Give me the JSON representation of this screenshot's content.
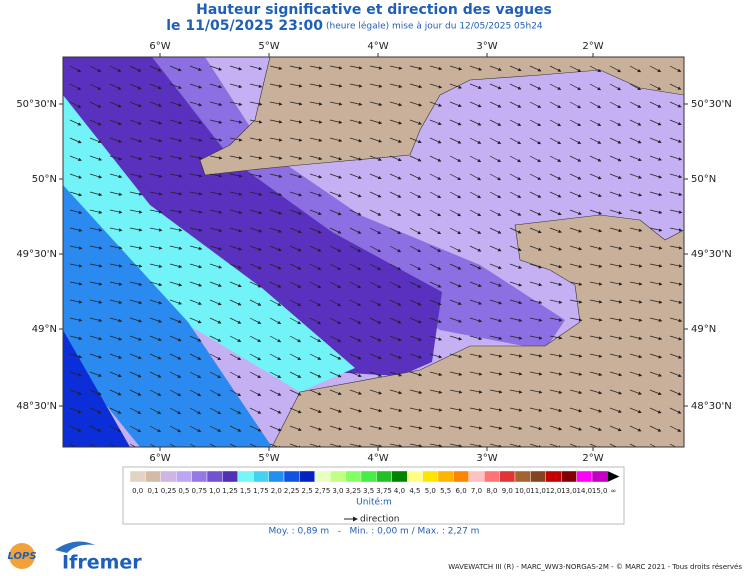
{
  "header": {
    "title": "Hauteur significative et direction des vagues",
    "date": "le 11/05/2025 23:00",
    "update": "(heure légale) mise à jour du 12/05/2025 05h24"
  },
  "map": {
    "x_ticks": [
      "6°W",
      "5°W",
      "4°W",
      "3°W",
      "2°W"
    ],
    "y_ticks": [
      "50°30'N",
      "50°N",
      "49°30'N",
      "49°N",
      "48°30'N"
    ]
  },
  "legend": {
    "colors": [
      "#e2d3c3",
      "#d2bca8",
      "#cdb5e6",
      "#bca6f3",
      "#9578e4",
      "#7352d2",
      "#5230b4",
      "#76f6f8",
      "#44d2f2",
      "#2290f0",
      "#1252e0",
      "#0422c2",
      "#e8ffc0",
      "#c2ff84",
      "#84ff62",
      "#44ee44",
      "#22c022",
      "#008400",
      "#ffff84",
      "#ffe400",
      "#ffb400",
      "#ff8400",
      "#ffc2c2",
      "#ff7474",
      "#e23434",
      "#a46432",
      "#844422",
      "#c40000",
      "#840000",
      "#ff00ff",
      "#c400c4"
    ],
    "labels": [
      "0,0",
      "0,1",
      "0,25",
      "0,5",
      "0,75",
      "1,0",
      "1,25",
      "1,5",
      "1,75",
      "2,0",
      "2,25",
      "2,5",
      "2,75",
      "3,0",
      "3,25",
      "3,5",
      "3,75",
      "4,0",
      "4,5",
      "5,0",
      "5,5",
      "6,0",
      "7,0",
      "8,0",
      "9,0",
      "10,0",
      "11,0",
      "12,0",
      "13,0",
      "14,0",
      "15,0",
      "∞"
    ],
    "unit": "Unité:m",
    "direction": "direction"
  },
  "stats": "Moy. : 0,89 m   -   Min. : 0,00 m / Max. : 2,27 m",
  "footer": "WAVEWATCH III (R) - MARC_WW3-NORGAS-2M - © MARC 2021 - Tous droits réservés",
  "logos": {
    "lops": "LOPS",
    "ifremer": "Ifremer"
  }
}
